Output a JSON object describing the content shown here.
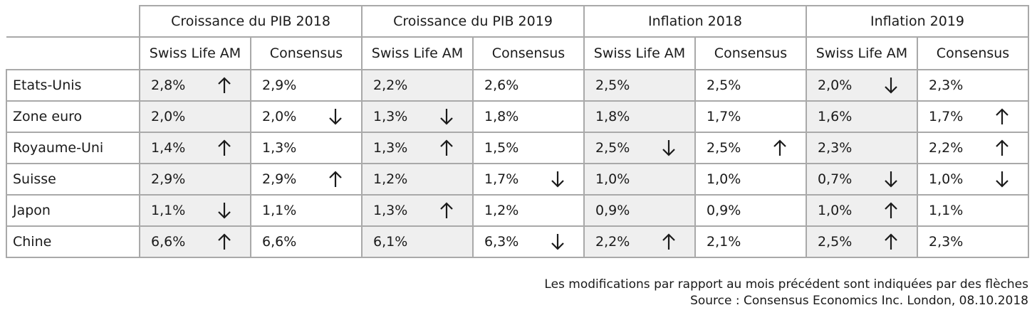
{
  "table": {
    "groups": [
      "Croissance du PIB 2018",
      "Croissance du PIB 2019",
      "Inflation 2018",
      "Inflation 2019"
    ],
    "subheaders": [
      "Swiss Life AM",
      "Consensus"
    ],
    "rows": [
      {
        "country": "Etats-Unis",
        "cells": [
          {
            "value": "2,8%",
            "arrow": "up"
          },
          {
            "value": "2,9%",
            "arrow": "none"
          },
          {
            "value": "2,2%",
            "arrow": "none"
          },
          {
            "value": "2,6%",
            "arrow": "none"
          },
          {
            "value": "2,5%",
            "arrow": "none"
          },
          {
            "value": "2,5%",
            "arrow": "none"
          },
          {
            "value": "2,0%",
            "arrow": "down"
          },
          {
            "value": "2,3%",
            "arrow": "none"
          }
        ]
      },
      {
        "country": "Zone euro",
        "cells": [
          {
            "value": "2,0%",
            "arrow": "none"
          },
          {
            "value": "2,0%",
            "arrow": "down"
          },
          {
            "value": "1,3%",
            "arrow": "down"
          },
          {
            "value": "1,8%",
            "arrow": "none"
          },
          {
            "value": "1,8%",
            "arrow": "none"
          },
          {
            "value": "1,7%",
            "arrow": "none"
          },
          {
            "value": "1,6%",
            "arrow": "none"
          },
          {
            "value": "1,7%",
            "arrow": "up"
          }
        ]
      },
      {
        "country": "Royaume-Uni",
        "cells": [
          {
            "value": "1,4%",
            "arrow": "up"
          },
          {
            "value": "1,3%",
            "arrow": "none"
          },
          {
            "value": "1,3%",
            "arrow": "up"
          },
          {
            "value": "1,5%",
            "arrow": "none"
          },
          {
            "value": "2,5%",
            "arrow": "down"
          },
          {
            "value": "2,5%",
            "arrow": "up"
          },
          {
            "value": "2,3%",
            "arrow": "none"
          },
          {
            "value": "2,2%",
            "arrow": "up"
          }
        ]
      },
      {
        "country": "Suisse",
        "cells": [
          {
            "value": "2,9%",
            "arrow": "none"
          },
          {
            "value": "2,9%",
            "arrow": "up"
          },
          {
            "value": "1,2%",
            "arrow": "none"
          },
          {
            "value": "1,7%",
            "arrow": "down"
          },
          {
            "value": "1,0%",
            "arrow": "none"
          },
          {
            "value": "1,0%",
            "arrow": "none"
          },
          {
            "value": "0,7%",
            "arrow": "down"
          },
          {
            "value": "1,0%",
            "arrow": "down"
          }
        ]
      },
      {
        "country": "Japon",
        "cells": [
          {
            "value": "1,1%",
            "arrow": "down"
          },
          {
            "value": "1,1%",
            "arrow": "none"
          },
          {
            "value": "1,3%",
            "arrow": "up"
          },
          {
            "value": "1,2%",
            "arrow": "none"
          },
          {
            "value": "0,9%",
            "arrow": "none"
          },
          {
            "value": "0,9%",
            "arrow": "none"
          },
          {
            "value": "1,0%",
            "arrow": "up"
          },
          {
            "value": "1,1%",
            "arrow": "none"
          }
        ]
      },
      {
        "country": "Chine",
        "cells": [
          {
            "value": "6,6%",
            "arrow": "up"
          },
          {
            "value": "6,6%",
            "arrow": "none"
          },
          {
            "value": "6,1%",
            "arrow": "none"
          },
          {
            "value": "6,3%",
            "arrow": "down"
          },
          {
            "value": "2,2%",
            "arrow": "up"
          },
          {
            "value": "2,1%",
            "arrow": "none"
          },
          {
            "value": "2,5%",
            "arrow": "up"
          },
          {
            "value": "2,3%",
            "arrow": "none"
          }
        ]
      }
    ]
  },
  "notes": {
    "line1": "Les modifications par rapport au mois précédent sont indiquées par des flèches",
    "line2": "Source : Consensus Economics Inc. London, 08.10.2018"
  },
  "icons": {
    "up": "arrow-up-icon",
    "down": "arrow-down-icon"
  },
  "colors": {
    "shaded_cell": "#efefef",
    "border": "#a9a9a9",
    "text": "#1a1a1a"
  }
}
